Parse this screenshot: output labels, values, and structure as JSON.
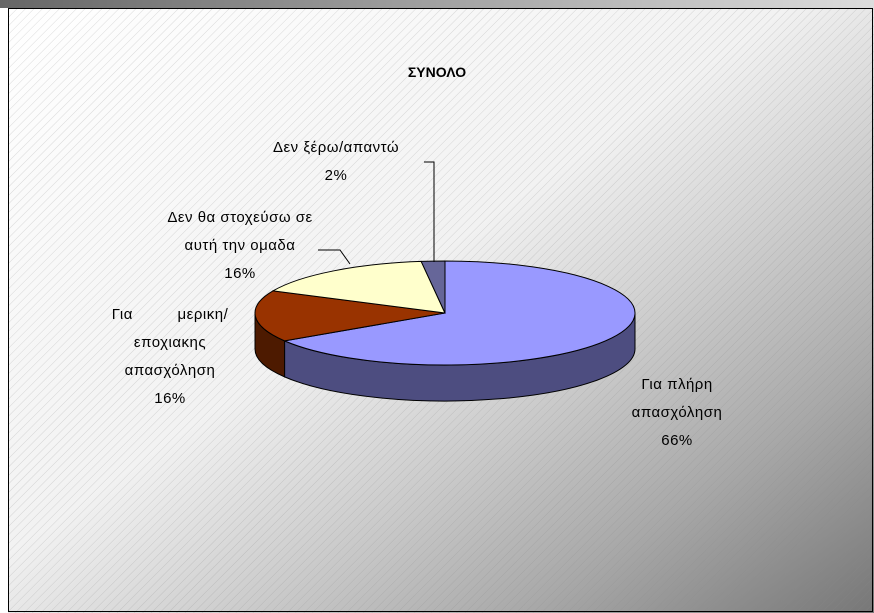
{
  "chart_data": {
    "type": "pie3d",
    "title": "ΣΥΝΟΛΟ",
    "categories": [
      "Για πλήρη απασχόληση",
      "Για μερικη/εποχιακης απασχόληση",
      "Δεν θα στοχεύσω σε αυτή την ομαδα",
      "Δεν ξέρω/απαντώ"
    ],
    "values": [
      66,
      16,
      16,
      2
    ],
    "value_labels": [
      "66%",
      "16%",
      "16%",
      "2%"
    ],
    "colors": [
      "#9999ff",
      "#993300",
      "#ffffcc",
      "#666699"
    ]
  }
}
